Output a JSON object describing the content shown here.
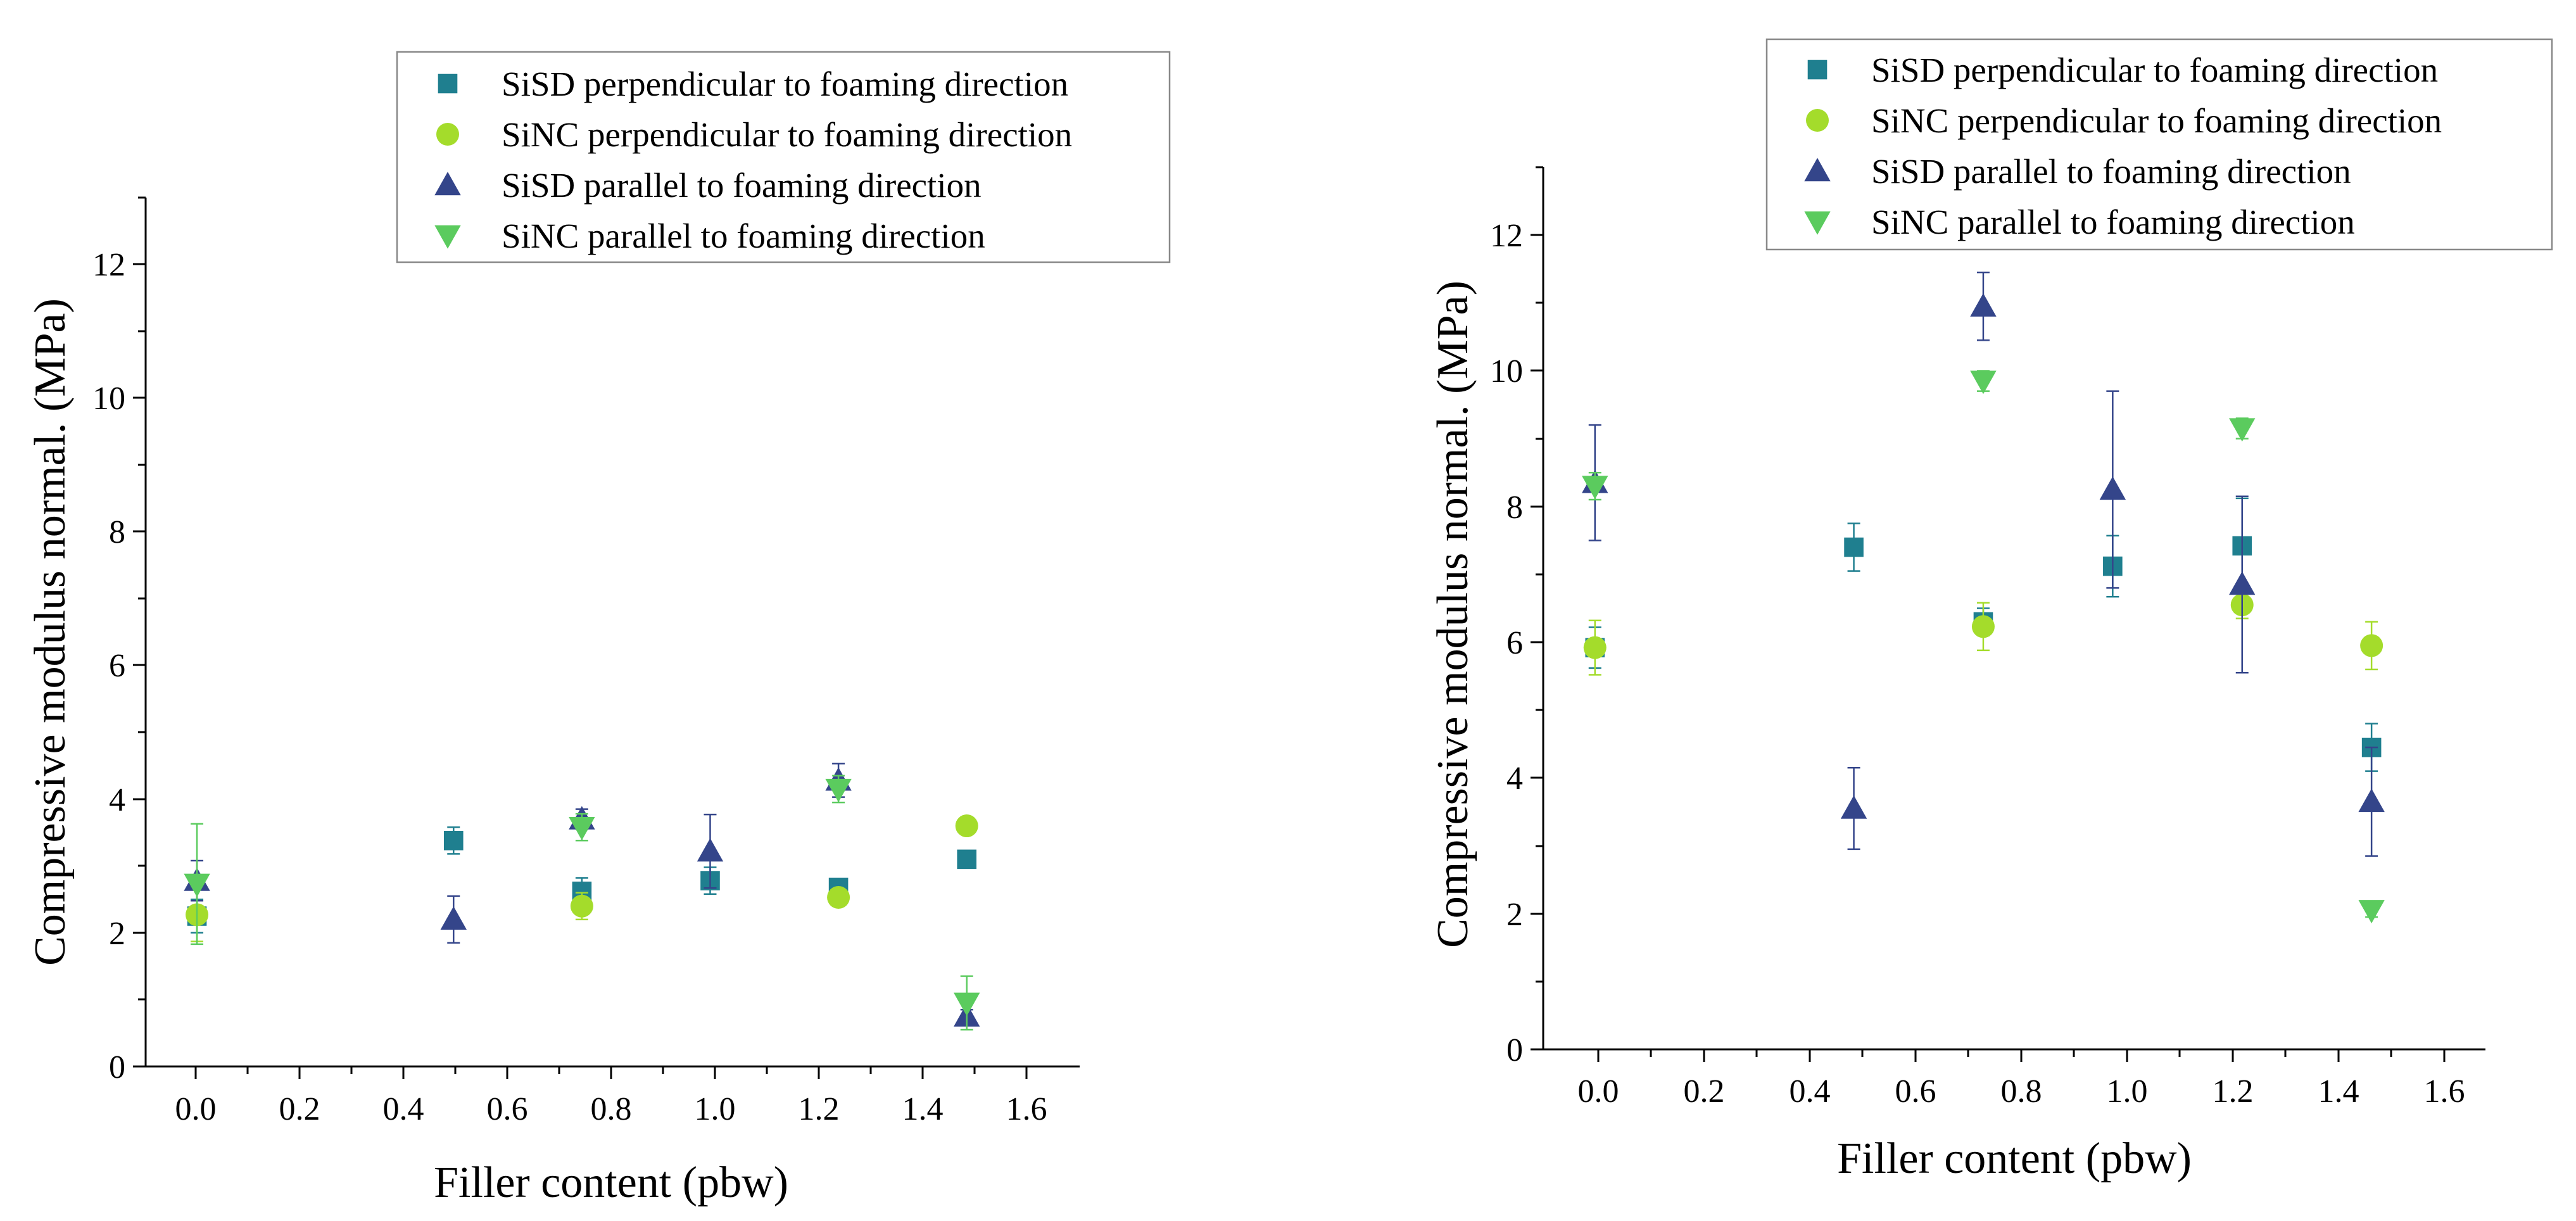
{
  "legend_labels": [
    "SiSD perpendicular to foaming direction",
    "SiNC perpendicular to foaming direction",
    "SiSD parallel to foaming direction",
    "SiNC parallel to foaming direction"
  ],
  "series_styles": [
    {
      "marker": "square",
      "color": "#1f7f8f"
    },
    {
      "marker": "circle",
      "color": "#a4dc2b"
    },
    {
      "marker": "triangle-up",
      "color": "#34458a"
    },
    {
      "marker": "triangle-down",
      "color": "#5bcb5e"
    }
  ],
  "chart_data": [
    {
      "type": "scatter",
      "title": "",
      "xlabel": "Filler content (pbw)",
      "ylabel": "Compressive modulus normal. (MPa)",
      "xlim": [
        -0.1,
        1.72
      ],
      "ylim": [
        0,
        13
      ],
      "xticks": [
        "0.0",
        "0.2",
        "0.4",
        "0.6",
        "0.8",
        "1.0",
        "1.2",
        "1.4",
        "1.6"
      ],
      "yticks": [
        "0",
        "2",
        "4",
        "6",
        "8",
        "10",
        "12"
      ],
      "legend_position": "top-right",
      "series": [
        {
          "name": "SiSD perpendicular to foaming direction",
          "points": [
            {
              "x": 0.0,
              "y": 2.25,
              "err": 0.25
            },
            {
              "x": 0.5,
              "y": 3.38,
              "err": 0.2
            },
            {
              "x": 0.75,
              "y": 2.62,
              "err": 0.2
            },
            {
              "x": 1.0,
              "y": 2.78,
              "err": 0.2
            },
            {
              "x": 1.25,
              "y": 2.68,
              "err": 0.1
            },
            {
              "x": 1.5,
              "y": 3.1,
              "err": 0.1
            }
          ]
        },
        {
          "name": "SiNC perpendicular to foaming direction",
          "points": [
            {
              "x": 0.0,
              "y": 2.27,
              "err": 0.4
            },
            {
              "x": 0.75,
              "y": 2.4,
              "err": 0.2
            },
            {
              "x": 1.25,
              "y": 2.53,
              "err": 0.1
            },
            {
              "x": 1.5,
              "y": 3.6,
              "err": 0.1
            }
          ]
        },
        {
          "name": "SiSD parallel to foaming direction",
          "points": [
            {
              "x": 0.0,
              "y": 2.78,
              "err": 0.3
            },
            {
              "x": 0.5,
              "y": 2.2,
              "err": 0.35
            },
            {
              "x": 0.75,
              "y": 3.7,
              "err": 0.15
            },
            {
              "x": 1.0,
              "y": 3.22,
              "err": 0.55
            },
            {
              "x": 1.25,
              "y": 4.28,
              "err": 0.25
            },
            {
              "x": 1.5,
              "y": 0.75,
              "err": 0.1
            }
          ]
        },
        {
          "name": "SiNC parallel to foaming direction",
          "points": [
            {
              "x": 0.0,
              "y": 2.73,
              "err": 0.9
            },
            {
              "x": 0.75,
              "y": 3.58,
              "err": 0.2
            },
            {
              "x": 1.25,
              "y": 4.15,
              "err": 0.2
            },
            {
              "x": 1.5,
              "y": 0.95,
              "err": 0.4
            }
          ]
        }
      ]
    },
    {
      "type": "scatter",
      "title": "",
      "xlabel": "Filler content (pbw)",
      "ylabel": "Compressive modulus normal. (MPa)",
      "xlim": [
        -0.1,
        1.72
      ],
      "ylim": [
        0,
        13
      ],
      "xticks": [
        "0.0",
        "0.2",
        "0.4",
        "0.6",
        "0.8",
        "1.0",
        "1.2",
        "1.4",
        "1.6"
      ],
      "yticks": [
        "0",
        "2",
        "4",
        "6",
        "8",
        "10",
        "12"
      ],
      "legend_position": "top",
      "series": [
        {
          "name": "SiSD perpendicular to foaming direction",
          "points": [
            {
              "x": 0.0,
              "y": 5.92,
              "err": 0.3
            },
            {
              "x": 0.5,
              "y": 7.4,
              "err": 0.35
            },
            {
              "x": 0.75,
              "y": 6.3,
              "err": 0.2
            },
            {
              "x": 1.0,
              "y": 7.12,
              "err": 0.45
            },
            {
              "x": 1.25,
              "y": 7.42,
              "err": 0.7
            },
            {
              "x": 1.5,
              "y": 4.45,
              "err": 0.35
            }
          ]
        },
        {
          "name": "SiNC perpendicular to foaming direction",
          "points": [
            {
              "x": 0.0,
              "y": 5.92,
              "err": 0.4
            },
            {
              "x": 0.75,
              "y": 6.23,
              "err": 0.35
            },
            {
              "x": 1.25,
              "y": 6.55,
              "err": 0.2
            },
            {
              "x": 1.5,
              "y": 5.95,
              "err": 0.35
            }
          ]
        },
        {
          "name": "SiSD parallel to foaming direction",
          "points": [
            {
              "x": 0.0,
              "y": 8.35,
              "err": 0.85
            },
            {
              "x": 0.5,
              "y": 3.55,
              "err": 0.6
            },
            {
              "x": 0.75,
              "y": 10.95,
              "err": 0.5
            },
            {
              "x": 1.0,
              "y": 8.25,
              "err": 1.45
            },
            {
              "x": 1.25,
              "y": 6.85,
              "err": 1.3
            },
            {
              "x": 1.5,
              "y": 3.65,
              "err": 0.8
            }
          ]
        },
        {
          "name": "SiNC parallel to foaming direction",
          "points": [
            {
              "x": 0.0,
              "y": 8.3,
              "err": 0.2
            },
            {
              "x": 0.75,
              "y": 9.85,
              "err": 0.15
            },
            {
              "x": 1.25,
              "y": 9.15,
              "err": 0.15
            },
            {
              "x": 1.5,
              "y": 2.05,
              "err": 0.1
            }
          ]
        }
      ]
    }
  ]
}
